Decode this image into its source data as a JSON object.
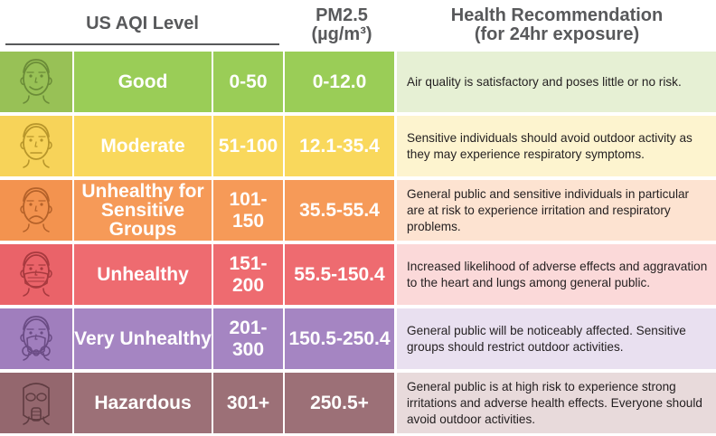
{
  "header": {
    "aqi_level": "US AQI Level",
    "pm25_line1": "PM2.5",
    "pm25_line2": "(µg/m³)",
    "rec_line1": "Health Recommendation",
    "rec_line2": "(for 24hr exposure)"
  },
  "rows": [
    {
      "level": "Good",
      "range": "0-50",
      "pm25": "0-12.0",
      "recommendation": "Air quality is satisfactory and poses little or no risk.",
      "icon": "happy-face-icon",
      "colors": {
        "face": "#98c156",
        "main": "#9acd57",
        "light": "#e6f0d4",
        "stroke": "#6b8c38"
      }
    },
    {
      "level": "Moderate",
      "range": "51-100",
      "pm25": "12.1-35.4",
      "recommendation": "Sensitive individuals should avoid outdoor activity as they may experience respiratory symptoms.",
      "icon": "neutral-face-icon",
      "colors": {
        "face": "#f7d359",
        "main": "#f9d85c",
        "light": "#fdf4cf",
        "stroke": "#b8962b"
      }
    },
    {
      "level": "Unhealthy for Sensitive Groups",
      "range": "101-150",
      "pm25": "35.5-55.4",
      "recommendation": "General public and sensitive individuals in particular are at risk to experience irritation and respiratory problems.",
      "icon": "sad-face-icon",
      "colors": {
        "face": "#f3934f",
        "main": "#f69a58",
        "light": "#fde3d1",
        "stroke": "#b5622a"
      }
    },
    {
      "level": "Unhealthy",
      "range": "151-200",
      "pm25": "55.5-150.4",
      "recommendation": "Increased likelihood of adverse effects and aggravation to the heart and lungs among general public.",
      "icon": "face-mask-icon",
      "colors": {
        "face": "#ea6369",
        "main": "#ee6b70",
        "light": "#fbd9d9",
        "stroke": "#a83a3f"
      }
    },
    {
      "level": "Very Unhealthy",
      "range": "201-300",
      "pm25": "150.5-250.4",
      "recommendation": "General public will be noticeably affected. Sensitive groups should restrict outdoor activities.",
      "icon": "respirator-icon",
      "colors": {
        "face": "#a07ebd",
        "main": "#a585c2",
        "light": "#e9e0f0",
        "stroke": "#6b4c85"
      }
    },
    {
      "level": "Hazardous",
      "range": "301+",
      "pm25": "250.5+",
      "recommendation": "General public is at high risk to experience strong irritations and adverse health effects. Everyone should avoid outdoor activities.",
      "icon": "gas-mask-icon",
      "colors": {
        "face": "#94676e",
        "main": "#9c7077",
        "light": "#e8dadb",
        "stroke": "#5f3c41"
      }
    }
  ]
}
